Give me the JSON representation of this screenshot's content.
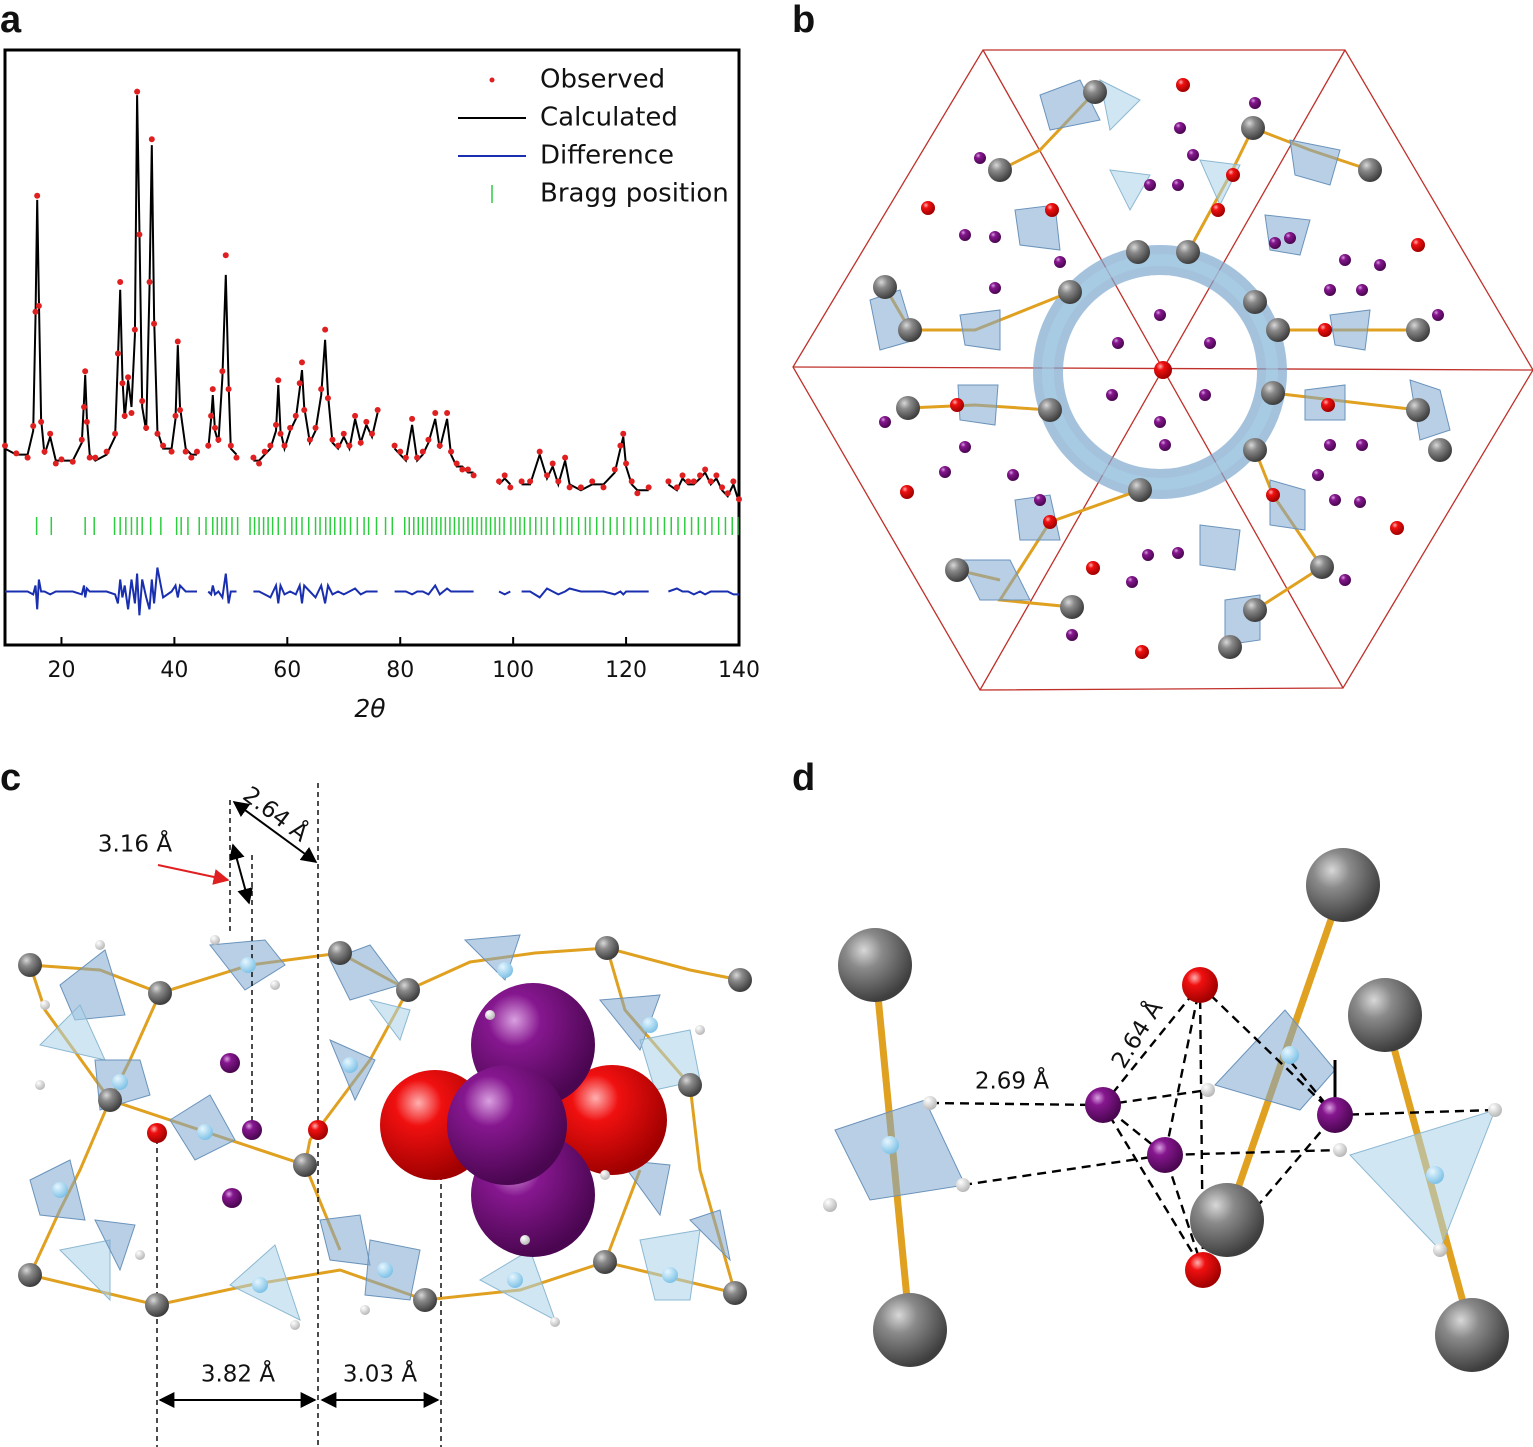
{
  "panel_labels": [
    "a",
    "b",
    "c",
    "d"
  ],
  "chart_data": {
    "type": "line",
    "xlabel": "2θ",
    "xlim": [
      10,
      140
    ],
    "xticks": [
      20,
      40,
      60,
      80,
      100,
      120,
      140
    ],
    "ylim": [
      0,
      100
    ],
    "legend": "upper right",
    "x": [
      10,
      12,
      14,
      15,
      15.4,
      15.7,
      16,
      16.4,
      17,
      18,
      19,
      20,
      22,
      23.6,
      24,
      24.2,
      24.5,
      25,
      26,
      28,
      29.5,
      30,
      30.4,
      30.8,
      31.2,
      31.8,
      32.4,
      33,
      33.4,
      33.8,
      34.3,
      35,
      35.6,
      36,
      36.4,
      37,
      38,
      39.5,
      40.2,
      40.6,
      41,
      42,
      43,
      44,
      null,
      46,
      46.5,
      46.8,
      47.2,
      47.8,
      48.5,
      49.1,
      49.6,
      50,
      51,
      null,
      54,
      55,
      56,
      57,
      58,
      58.4,
      58.8,
      59.5,
      60.5,
      61.5,
      62.2,
      62.6,
      63,
      64,
      65,
      66,
      66.7,
      67.2,
      68,
      69,
      70,
      71,
      72,
      73,
      74,
      75,
      76,
      null,
      79,
      80,
      81,
      82.1,
      83,
      84,
      85,
      86.2,
      87,
      88.3,
      89,
      90,
      91,
      92,
      93,
      null,
      97.5,
      98.5,
      99.5,
      null,
      101.5,
      103,
      104.7,
      106,
      107,
      108,
      109.2,
      110,
      112,
      114,
      116,
      118,
      119,
      119.5,
      120,
      121,
      122,
      124,
      null,
      127.5,
      129,
      130,
      131,
      132,
      133.1,
      134,
      135,
      136,
      137,
      138,
      139,
      140
    ],
    "series": [
      {
        "name": "Observed",
        "color": "#e02020",
        "mark": "points",
        "values": [
          33.5,
          32.2,
          31.5,
          36.8,
          56,
          75.5,
          57,
          37.5,
          32.5,
          35.5,
          30.5,
          31.2,
          30.8,
          34.5,
          40,
          46,
          37.5,
          31.5,
          31.5,
          32.5,
          35.5,
          49,
          61,
          44,
          38.5,
          45,
          39,
          53,
          93,
          69,
          41,
          36.5,
          61,
          85,
          54,
          35.5,
          33.5,
          32.5,
          38.5,
          51,
          39.5,
          32.5,
          31.5,
          32.5,
          null,
          33.5,
          38.5,
          43,
          36.5,
          34.5,
          46,
          65.5,
          43,
          33.5,
          31.5,
          null,
          31.5,
          30.5,
          32.5,
          33.5,
          37,
          44.5,
          35.5,
          33.5,
          36.5,
          38.5,
          44,
          47.5,
          39.5,
          34.5,
          36.5,
          43,
          53,
          41.5,
          34.5,
          33.5,
          35.5,
          33.5,
          38.5,
          34,
          37.5,
          35.5,
          39.5,
          null,
          33.5,
          32.5,
          31.5,
          38,
          31.5,
          32.5,
          34.5,
          39,
          33.5,
          39,
          32.5,
          30.5,
          29.5,
          29.5,
          28.5,
          null,
          27.5,
          28.5,
          26.5,
          null,
          27.5,
          27.5,
          32.5,
          28.5,
          30.5,
          27.5,
          31.5,
          26.5,
          26.5,
          27.5,
          26.5,
          29.5,
          33.5,
          35.5,
          30.5,
          27.5,
          25.5,
          26.5,
          null,
          27.5,
          26.5,
          28.5,
          27.5,
          27.5,
          28.5,
          29.5,
          27.5,
          28.5,
          26.5,
          25.5,
          27.5,
          24.5
        ]
      },
      {
        "name": "Calculated",
        "color": "#000000",
        "mark": "line",
        "values": [
          33,
          32,
          32,
          36,
          55,
          74.8,
          58,
          38,
          32,
          35,
          31,
          31,
          31,
          34,
          41,
          45.4,
          38,
          32,
          31,
          32,
          35,
          48,
          59.7,
          45,
          38,
          44.5,
          40,
          52,
          92.4,
          70,
          40,
          36,
          60,
          84,
          55,
          36,
          33,
          33,
          38,
          50.4,
          40,
          33,
          32,
          32,
          null,
          33,
          38,
          42,
          36,
          34,
          45,
          62.2,
          44,
          33,
          32,
          null,
          31,
          31,
          32,
          33,
          36,
          43.7,
          36,
          33,
          36,
          38,
          43,
          46.2,
          40,
          34,
          36,
          42,
          51.3,
          42,
          34,
          33,
          35,
          33,
          38,
          34,
          37,
          35,
          39,
          null,
          33,
          32,
          31,
          37,
          31,
          32,
          34,
          38,
          33,
          38,
          32,
          30,
          30,
          29,
          29,
          null,
          27,
          28,
          27,
          null,
          27,
          27,
          32,
          28,
          30,
          27,
          31,
          27,
          26,
          27,
          27,
          29,
          33,
          35,
          30,
          27,
          26,
          26,
          null,
          27,
          26,
          28,
          27,
          27,
          28,
          29,
          27,
          28,
          26,
          25,
          27,
          24
        ]
      },
      {
        "name": "Difference",
        "color": "#1a2fb0",
        "mark": "line",
        "values": [
          9,
          9,
          9,
          8.5,
          10,
          6,
          11,
          9,
          9,
          8.5,
          9,
          9,
          9,
          8.5,
          10,
          8,
          9.5,
          9,
          9,
          9,
          8.5,
          7,
          11,
          8,
          10,
          6,
          11,
          7,
          12,
          5,
          11,
          8,
          6,
          11,
          7,
          13,
          8,
          9,
          10,
          8,
          10,
          9,
          9,
          9,
          null,
          9,
          8.5,
          10,
          8.5,
          9,
          8,
          12,
          7,
          9,
          9,
          null,
          9,
          9,
          8.5,
          8,
          10,
          7,
          10,
          8.5,
          9,
          8.5,
          10,
          7,
          10,
          9,
          8,
          10,
          7,
          10,
          8.5,
          9,
          8.5,
          9,
          9.5,
          8.5,
          9,
          9,
          9,
          null,
          9,
          9,
          9,
          8.5,
          9,
          9,
          8.5,
          10,
          8.5,
          9.5,
          9,
          9,
          9,
          9,
          9,
          null,
          9,
          8.5,
          9,
          null,
          9,
          9,
          8,
          9.5,
          9,
          8.5,
          9,
          9.5,
          9,
          9,
          9,
          8.5,
          9,
          8.5,
          9,
          9,
          9,
          9,
          null,
          9,
          9.5,
          9,
          9,
          8.5,
          9,
          8.5,
          9,
          9,
          9,
          9,
          8.5,
          8.5
        ]
      },
      {
        "name": "Bragg position",
        "color": "#2ecc40",
        "mark": "ticks",
        "x": [
          15.6,
          18.2,
          24.2,
          25.8,
          29.4,
          30.4,
          31.4,
          32.4,
          33.4,
          34.3,
          35.8,
          37.6,
          40.4,
          41.2,
          42.4,
          44.4,
          45.6,
          46.8,
          47.6,
          48.4,
          49.2,
          50.2,
          51.2,
          53.4,
          54.2,
          55,
          55.8,
          56.6,
          57.4,
          58.4,
          59.6,
          60.8,
          61.6,
          62.6,
          63.8,
          65,
          65.8,
          66.8,
          67.6,
          68.4,
          69.4,
          70.2,
          71.2,
          72.4,
          73.6,
          74.4,
          75.8,
          77.4,
          78.6,
          80.8,
          81.6,
          82.4,
          83.2,
          84,
          84.8,
          85.6,
          86.4,
          87.2,
          88,
          88.8,
          89.6,
          90.4,
          91.2,
          92,
          92.8,
          93.6,
          94.4,
          95.2,
          96,
          96.8,
          97.6,
          98.4,
          99.6,
          100.4,
          101.2,
          102,
          103,
          104,
          105,
          106,
          107.2,
          108.4,
          109.6,
          110.4,
          111.6,
          112.8,
          113.6,
          114.8,
          116,
          117.2,
          118.4,
          119.6,
          120.8,
          122,
          123.2,
          124.4,
          125.6,
          126.8,
          128,
          129.2,
          130.4,
          131.6,
          132.8,
          134,
          135.2,
          136.4,
          137.6,
          138.8,
          139.8
        ]
      }
    ]
  },
  "panel_c": {
    "annotations": [
      "2.64 Å",
      "3.16 Å",
      "3.82 Å",
      "3.03 Å"
    ]
  },
  "panel_d": {
    "annotations": [
      "2.69 Å",
      "2.64 Å"
    ]
  }
}
